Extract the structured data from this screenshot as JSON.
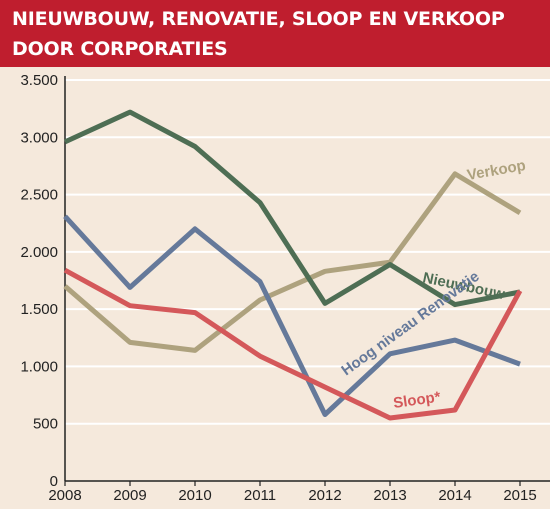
{
  "title": {
    "line1": "NIEUWBOUW, RENOVATIE, SLOOP EN VERKOOP",
    "line2": "DOOR CORPORATIES"
  },
  "colors": {
    "title_bg": "#bf1e2e",
    "background": "#f5e9dc",
    "grid": "#ffffff",
    "axis": "#222222"
  },
  "chart_data": {
    "type": "line",
    "title": "NIEUWBOUW, RENOVATIE, SLOOP EN VERKOOP DOOR CORPORATIES",
    "xlabel": "",
    "ylabel": "",
    "x": [
      "2008",
      "2009",
      "2010",
      "2011",
      "2012",
      "2013",
      "2014",
      "2015"
    ],
    "ylim": [
      0,
      3500
    ],
    "yticks": [
      0,
      500,
      1000,
      1500,
      2000,
      2500,
      3000,
      3500
    ],
    "ytick_labels": [
      "0",
      "500",
      "1.000",
      "1.500",
      "2.000",
      "2.500",
      "3.000",
      "3.500"
    ],
    "grid": true,
    "legend": "inline labels",
    "series": [
      {
        "name": "Nieuwbouw",
        "color": "#4e6e54",
        "values": [
          2960,
          3220,
          2920,
          2430,
          1550,
          1890,
          1540,
          1650
        ]
      },
      {
        "name": "Verkoop",
        "color": "#aea27e",
        "values": [
          1700,
          1210,
          1140,
          1580,
          1830,
          1910,
          2680,
          2340
        ]
      },
      {
        "name": "Hoog niveau Renovatie",
        "color": "#65799a",
        "values": [
          2310,
          1690,
          2200,
          1740,
          580,
          1110,
          1230,
          1020
        ]
      },
      {
        "name": "Sloop*",
        "color": "#d4585a",
        "values": [
          1840,
          1530,
          1470,
          1090,
          820,
          550,
          620,
          1660
        ]
      }
    ]
  }
}
